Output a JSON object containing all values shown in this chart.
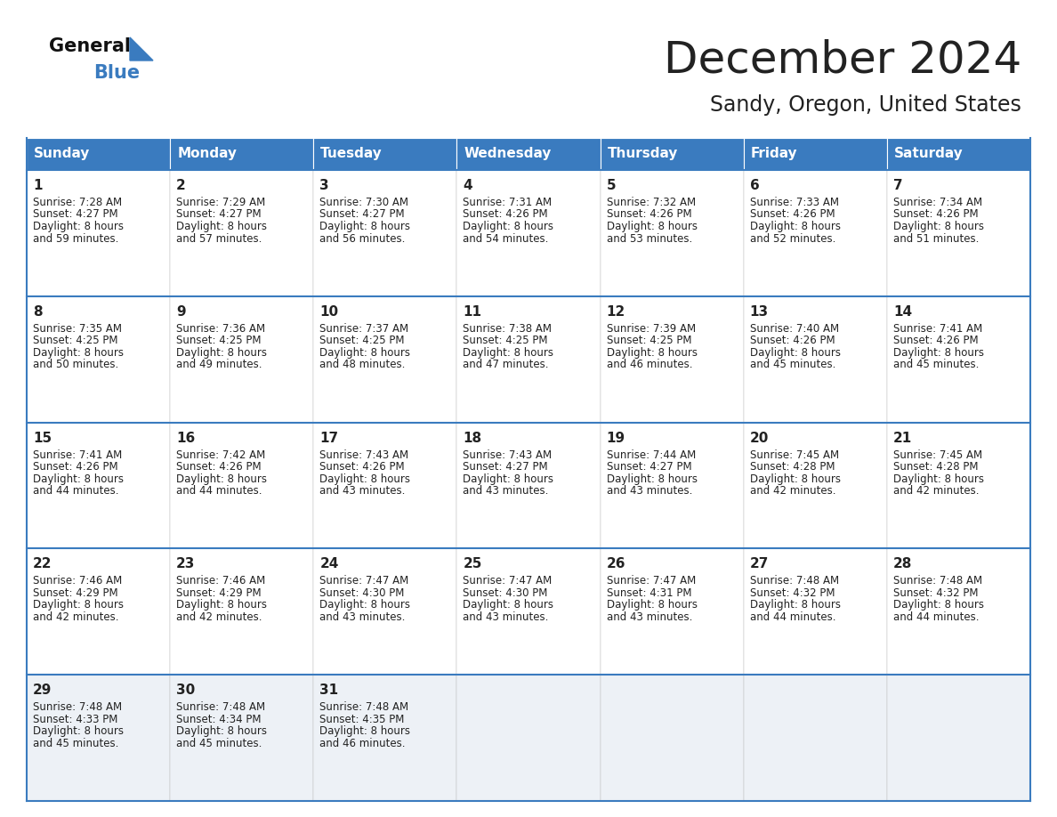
{
  "title": "December 2024",
  "subtitle": "Sandy, Oregon, United States",
  "header_color": "#3a7bbf",
  "header_text_color": "#ffffff",
  "cell_bg_color": "#ffffff",
  "last_row_bg_color": "#edf1f6",
  "border_color": "#3a7bbf",
  "text_color": "#222222",
  "days_of_week": [
    "Sunday",
    "Monday",
    "Tuesday",
    "Wednesday",
    "Thursday",
    "Friday",
    "Saturday"
  ],
  "weeks": [
    [
      {
        "day": 1,
        "sunrise": "7:28 AM",
        "sunset": "4:27 PM",
        "daylight": "8 hours",
        "daylight2": "and 59 minutes."
      },
      {
        "day": 2,
        "sunrise": "7:29 AM",
        "sunset": "4:27 PM",
        "daylight": "8 hours",
        "daylight2": "and 57 minutes."
      },
      {
        "day": 3,
        "sunrise": "7:30 AM",
        "sunset": "4:27 PM",
        "daylight": "8 hours",
        "daylight2": "and 56 minutes."
      },
      {
        "day": 4,
        "sunrise": "7:31 AM",
        "sunset": "4:26 PM",
        "daylight": "8 hours",
        "daylight2": "and 54 minutes."
      },
      {
        "day": 5,
        "sunrise": "7:32 AM",
        "sunset": "4:26 PM",
        "daylight": "8 hours",
        "daylight2": "and 53 minutes."
      },
      {
        "day": 6,
        "sunrise": "7:33 AM",
        "sunset": "4:26 PM",
        "daylight": "8 hours",
        "daylight2": "and 52 minutes."
      },
      {
        "day": 7,
        "sunrise": "7:34 AM",
        "sunset": "4:26 PM",
        "daylight": "8 hours",
        "daylight2": "and 51 minutes."
      }
    ],
    [
      {
        "day": 8,
        "sunrise": "7:35 AM",
        "sunset": "4:25 PM",
        "daylight": "8 hours",
        "daylight2": "and 50 minutes."
      },
      {
        "day": 9,
        "sunrise": "7:36 AM",
        "sunset": "4:25 PM",
        "daylight": "8 hours",
        "daylight2": "and 49 minutes."
      },
      {
        "day": 10,
        "sunrise": "7:37 AM",
        "sunset": "4:25 PM",
        "daylight": "8 hours",
        "daylight2": "and 48 minutes."
      },
      {
        "day": 11,
        "sunrise": "7:38 AM",
        "sunset": "4:25 PM",
        "daylight": "8 hours",
        "daylight2": "and 47 minutes."
      },
      {
        "day": 12,
        "sunrise": "7:39 AM",
        "sunset": "4:25 PM",
        "daylight": "8 hours",
        "daylight2": "and 46 minutes."
      },
      {
        "day": 13,
        "sunrise": "7:40 AM",
        "sunset": "4:26 PM",
        "daylight": "8 hours",
        "daylight2": "and 45 minutes."
      },
      {
        "day": 14,
        "sunrise": "7:41 AM",
        "sunset": "4:26 PM",
        "daylight": "8 hours",
        "daylight2": "and 45 minutes."
      }
    ],
    [
      {
        "day": 15,
        "sunrise": "7:41 AM",
        "sunset": "4:26 PM",
        "daylight": "8 hours",
        "daylight2": "and 44 minutes."
      },
      {
        "day": 16,
        "sunrise": "7:42 AM",
        "sunset": "4:26 PM",
        "daylight": "8 hours",
        "daylight2": "and 44 minutes."
      },
      {
        "day": 17,
        "sunrise": "7:43 AM",
        "sunset": "4:26 PM",
        "daylight": "8 hours",
        "daylight2": "and 43 minutes."
      },
      {
        "day": 18,
        "sunrise": "7:43 AM",
        "sunset": "4:27 PM",
        "daylight": "8 hours",
        "daylight2": "and 43 minutes."
      },
      {
        "day": 19,
        "sunrise": "7:44 AM",
        "sunset": "4:27 PM",
        "daylight": "8 hours",
        "daylight2": "and 43 minutes."
      },
      {
        "day": 20,
        "sunrise": "7:45 AM",
        "sunset": "4:28 PM",
        "daylight": "8 hours",
        "daylight2": "and 42 minutes."
      },
      {
        "day": 21,
        "sunrise": "7:45 AM",
        "sunset": "4:28 PM",
        "daylight": "8 hours",
        "daylight2": "and 42 minutes."
      }
    ],
    [
      {
        "day": 22,
        "sunrise": "7:46 AM",
        "sunset": "4:29 PM",
        "daylight": "8 hours",
        "daylight2": "and 42 minutes."
      },
      {
        "day": 23,
        "sunrise": "7:46 AM",
        "sunset": "4:29 PM",
        "daylight": "8 hours",
        "daylight2": "and 42 minutes."
      },
      {
        "day": 24,
        "sunrise": "7:47 AM",
        "sunset": "4:30 PM",
        "daylight": "8 hours",
        "daylight2": "and 43 minutes."
      },
      {
        "day": 25,
        "sunrise": "7:47 AM",
        "sunset": "4:30 PM",
        "daylight": "8 hours",
        "daylight2": "and 43 minutes."
      },
      {
        "day": 26,
        "sunrise": "7:47 AM",
        "sunset": "4:31 PM",
        "daylight": "8 hours",
        "daylight2": "and 43 minutes."
      },
      {
        "day": 27,
        "sunrise": "7:48 AM",
        "sunset": "4:32 PM",
        "daylight": "8 hours",
        "daylight2": "and 44 minutes."
      },
      {
        "day": 28,
        "sunrise": "7:48 AM",
        "sunset": "4:32 PM",
        "daylight": "8 hours",
        "daylight2": "and 44 minutes."
      }
    ],
    [
      {
        "day": 29,
        "sunrise": "7:48 AM",
        "sunset": "4:33 PM",
        "daylight": "8 hours",
        "daylight2": "and 45 minutes."
      },
      {
        "day": 30,
        "sunrise": "7:48 AM",
        "sunset": "4:34 PM",
        "daylight": "8 hours",
        "daylight2": "and 45 minutes."
      },
      {
        "day": 31,
        "sunrise": "7:48 AM",
        "sunset": "4:35 PM",
        "daylight": "8 hours",
        "daylight2": "and 46 minutes."
      },
      null,
      null,
      null,
      null
    ]
  ],
  "logo_general_color": "#111111",
  "logo_blue_color": "#3a7bbf",
  "logo_triangle_color": "#3a7bbf",
  "title_fontsize": 36,
  "subtitle_fontsize": 17,
  "header_fontsize": 11,
  "day_num_fontsize": 11,
  "cell_fontsize": 8.5
}
